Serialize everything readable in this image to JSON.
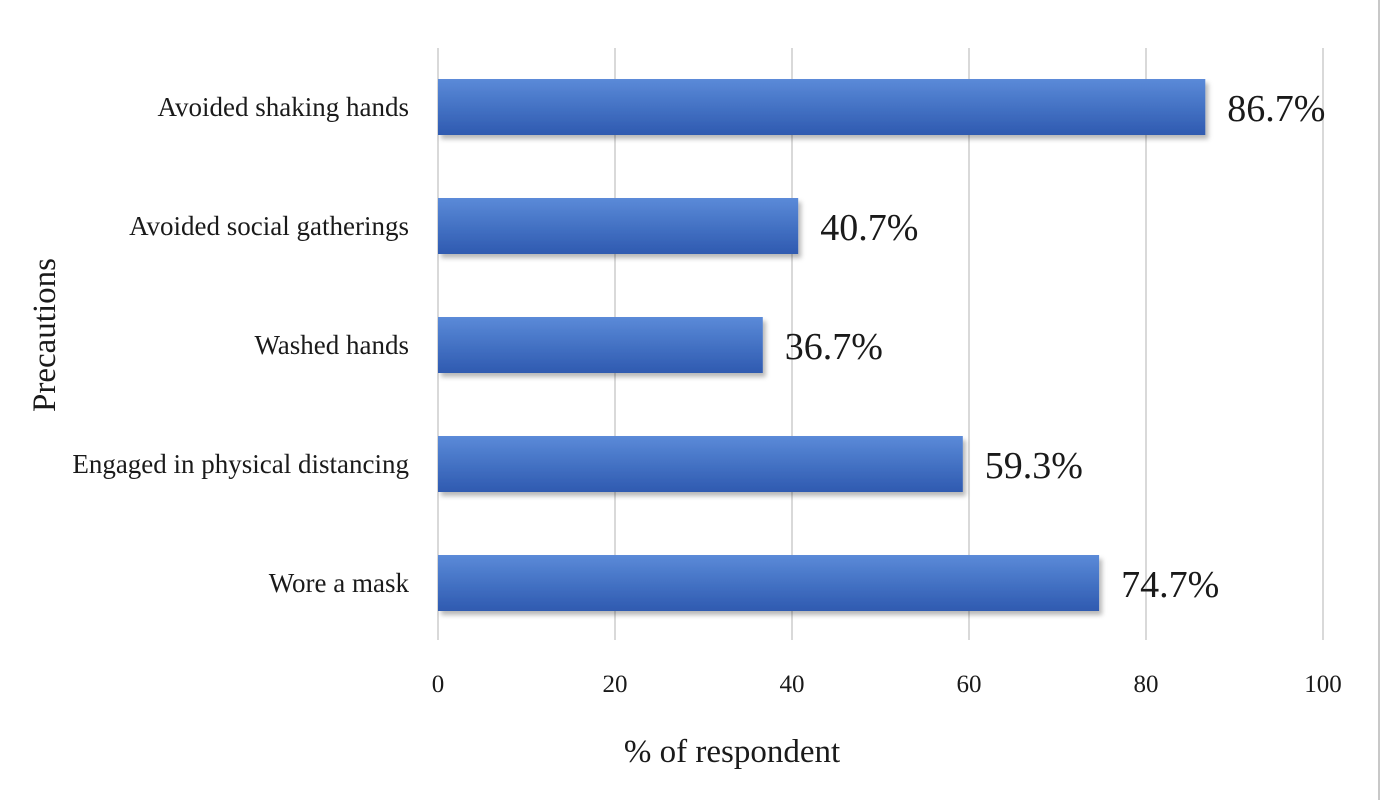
{
  "chart_data": {
    "type": "bar",
    "orientation": "horizontal",
    "categories": [
      "Avoided shaking hands",
      "Avoided social gatherings",
      "Washed hands",
      "Engaged in physical distancing",
      "Wore a mask"
    ],
    "values": [
      86.7,
      40.7,
      36.7,
      59.3,
      74.7
    ],
    "data_labels": [
      "86.7%",
      "40.7%",
      "36.7%",
      "59.3%",
      "74.7%"
    ],
    "title": "",
    "xlabel": "% of respondent",
    "ylabel": "Precautions",
    "xlim": [
      0,
      100
    ],
    "xticks": [
      0,
      20,
      40,
      60,
      80,
      100
    ],
    "xtick_labels": [
      "0",
      "20",
      "40",
      "60",
      "80",
      "100"
    ],
    "grid": "vertical",
    "legend": "none",
    "bar_color": "#4472c4",
    "bar_color_light": "#5b8ad8",
    "bar_color_dark": "#2f5ab0"
  }
}
